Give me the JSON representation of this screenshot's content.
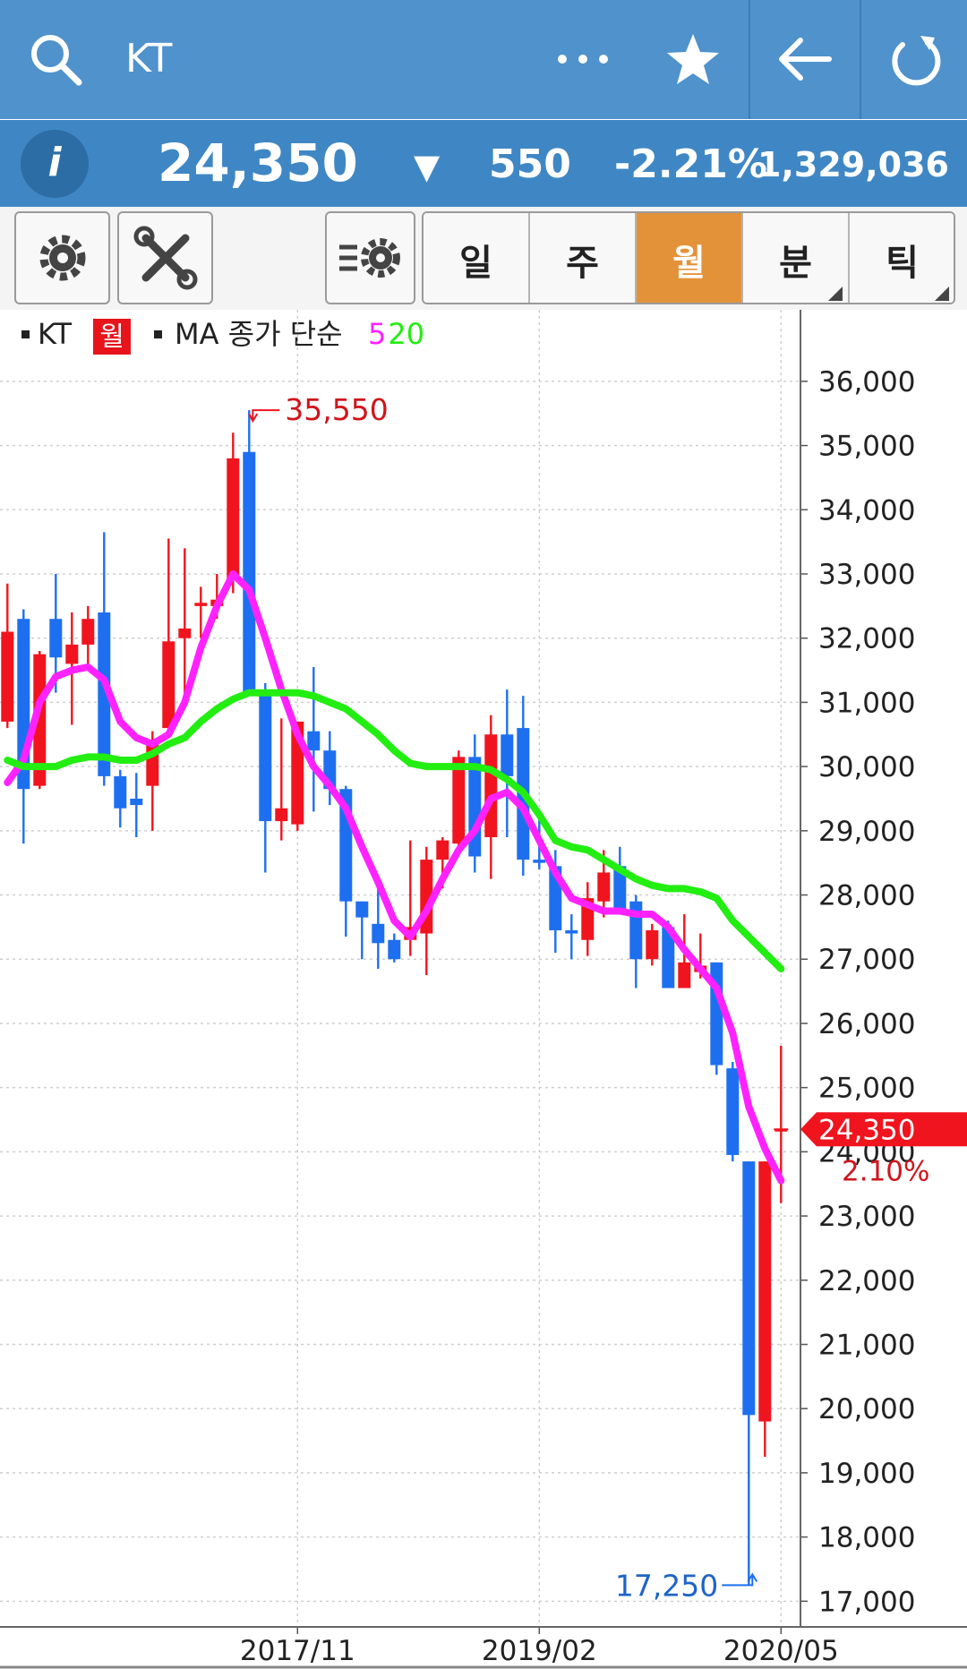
{
  "header": {
    "title": "KT"
  },
  "quote": {
    "price": "24,350",
    "direction": "▼",
    "change": "550",
    "change_pct": "-2.21%",
    "volume": "1,329,036"
  },
  "periods": [
    "일",
    "주",
    "월",
    "분",
    "틱"
  ],
  "chart_data": {
    "type": "candlestick",
    "name": "KT",
    "period": "월",
    "ma_label": "MA 종가 단순",
    "x": [
      "2016/05",
      "2016/06",
      "2016/07",
      "2016/08",
      "2016/09",
      "2016/10",
      "2016/11",
      "2016/12",
      "2017/01",
      "2017/02",
      "2017/03",
      "2017/04",
      "2017/05",
      "2017/06",
      "2017/07",
      "2017/08",
      "2017/09",
      "2017/10",
      "2017/11",
      "2017/12",
      "2018/01",
      "2018/02",
      "2018/03",
      "2018/04",
      "2018/05",
      "2018/06",
      "2018/07",
      "2018/08",
      "2018/09",
      "2018/10",
      "2018/11",
      "2018/12",
      "2019/01",
      "2019/02",
      "2019/03",
      "2019/04",
      "2019/05",
      "2019/06",
      "2019/07",
      "2019/08",
      "2019/09",
      "2019/10",
      "2019/11",
      "2019/12",
      "2020/01",
      "2020/02",
      "2020/03",
      "2020/04",
      "2020/05"
    ],
    "open": [
      30700,
      32300,
      29700,
      32300,
      31600,
      31900,
      32400,
      29850,
      29500,
      29700,
      30600,
      32000,
      32500,
      32500,
      32900,
      34900,
      31200,
      29150,
      29100,
      30550,
      30250,
      29650,
      27900,
      27550,
      27300,
      27300,
      27400,
      28550,
      28800,
      30150,
      28900,
      30500,
      30600,
      28550,
      28450,
      27450,
      27300,
      27900,
      28450,
      27900,
      27000,
      27500,
      26550,
      26800,
      26950,
      25300,
      23850,
      19800,
      24350
    ],
    "high": [
      32850,
      32450,
      31800,
      33000,
      32400,
      32500,
      33650,
      29950,
      29900,
      30550,
      33550,
      33400,
      32800,
      33000,
      35200,
      35550,
      31300,
      30750,
      30700,
      31550,
      30550,
      29700,
      27900,
      28100,
      27400,
      28850,
      28750,
      28900,
      30250,
      30500,
      30800,
      31200,
      31100,
      29300,
      28700,
      27700,
      28200,
      28700,
      28750,
      28000,
      27550,
      27600,
      27700,
      27400,
      26950,
      25400,
      23850,
      23850,
      25650
    ],
    "low": [
      30600,
      28800,
      29650,
      31150,
      30650,
      31550,
      29700,
      29050,
      28900,
      29000,
      30500,
      31100,
      32000,
      32300,
      32700,
      31150,
      28350,
      28850,
      29000,
      29300,
      29400,
      27350,
      27000,
      26850,
      26950,
      27050,
      26750,
      28100,
      28600,
      28350,
      28250,
      28900,
      28300,
      28400,
      27100,
      27000,
      27050,
      27650,
      27700,
      26550,
      26900,
      26550,
      26550,
      26700,
      25200,
      23850,
      17250,
      19250,
      23200
    ],
    "close": [
      32100,
      29650,
      31750,
      31700,
      31900,
      32300,
      29850,
      29350,
      29400,
      30400,
      31950,
      32150,
      32550,
      32600,
      34800,
      31150,
      29150,
      29350,
      30700,
      30250,
      29650,
      27900,
      27650,
      27250,
      27000,
      27500,
      28550,
      28850,
      30150,
      28600,
      30500,
      29850,
      28550,
      28500,
      27450,
      27400,
      27950,
      28350,
      27750,
      27000,
      27450,
      26550,
      26950,
      26900,
      25350,
      23950,
      19900,
      23850,
      24350
    ],
    "up_color": "#f0141e",
    "down_color": "#1e6ff0",
    "series": [
      {
        "name": "5",
        "color": "#ff22ff",
        "values": [
          29750,
          30100,
          31000,
          31400,
          31500,
          31550,
          31350,
          30700,
          30450,
          30350,
          30500,
          31000,
          31850,
          32500,
          33000,
          32750,
          32000,
          31200,
          30500,
          30000,
          29700,
          29350,
          28750,
          28200,
          27600,
          27350,
          27750,
          28250,
          28700,
          29000,
          29500,
          29600,
          29350,
          28850,
          28350,
          27950,
          27850,
          27750,
          27750,
          27700,
          27700,
          27500,
          27150,
          26850,
          26550,
          25850,
          24700,
          24050,
          23550
        ]
      },
      {
        "name": "20",
        "color": "#22ee11",
        "values": [
          30100,
          30000,
          30000,
          30000,
          30100,
          30150,
          30150,
          30100,
          30100,
          30200,
          30350,
          30450,
          30700,
          30900,
          31050,
          31150,
          31150,
          31150,
          31150,
          31100,
          31000,
          30900,
          30700,
          30500,
          30250,
          30050,
          30000,
          30000,
          30000,
          30000,
          29950,
          29800,
          29600,
          29250,
          28850,
          28750,
          28700,
          28550,
          28400,
          28250,
          28150,
          28100,
          28100,
          28050,
          27950,
          27600,
          27350,
          27100,
          26850
        ]
      }
    ],
    "ylim": [
      16600,
      37100
    ],
    "yticks": [
      {
        "value": 17000,
        "label": "17,000"
      },
      {
        "value": 18000,
        "label": "18,000"
      },
      {
        "value": 19000,
        "label": "19,000"
      },
      {
        "value": 20000,
        "label": "20,000"
      },
      {
        "value": 21000,
        "label": "21,000"
      },
      {
        "value": 22000,
        "label": "22,000"
      },
      {
        "value": 23000,
        "label": "23,000"
      },
      {
        "value": 24000,
        "label": "24,000"
      },
      {
        "value": 25000,
        "label": "25,000"
      },
      {
        "value": 26000,
        "label": "26,000"
      },
      {
        "value": 27000,
        "label": "27,000"
      },
      {
        "value": 28000,
        "label": "28,000"
      },
      {
        "value": 29000,
        "label": "29,000"
      },
      {
        "value": 30000,
        "label": "30,000"
      },
      {
        "value": 31000,
        "label": "31,000"
      },
      {
        "value": 32000,
        "label": "32,000"
      },
      {
        "value": 33000,
        "label": "33,000"
      },
      {
        "value": 34000,
        "label": "34,000"
      },
      {
        "value": 35000,
        "label": "35,000"
      },
      {
        "value": 36000,
        "label": "36,000"
      }
    ],
    "xticks": [
      "2017/11",
      "2019/02",
      "2020/05"
    ],
    "grid": true,
    "high_marker": {
      "value": 35550,
      "label": "35,550"
    },
    "low_marker": {
      "value": 17250,
      "label": "17,250"
    },
    "last_price": {
      "value": 24350,
      "label": "24,350"
    },
    "last_change": "2.10%"
  }
}
